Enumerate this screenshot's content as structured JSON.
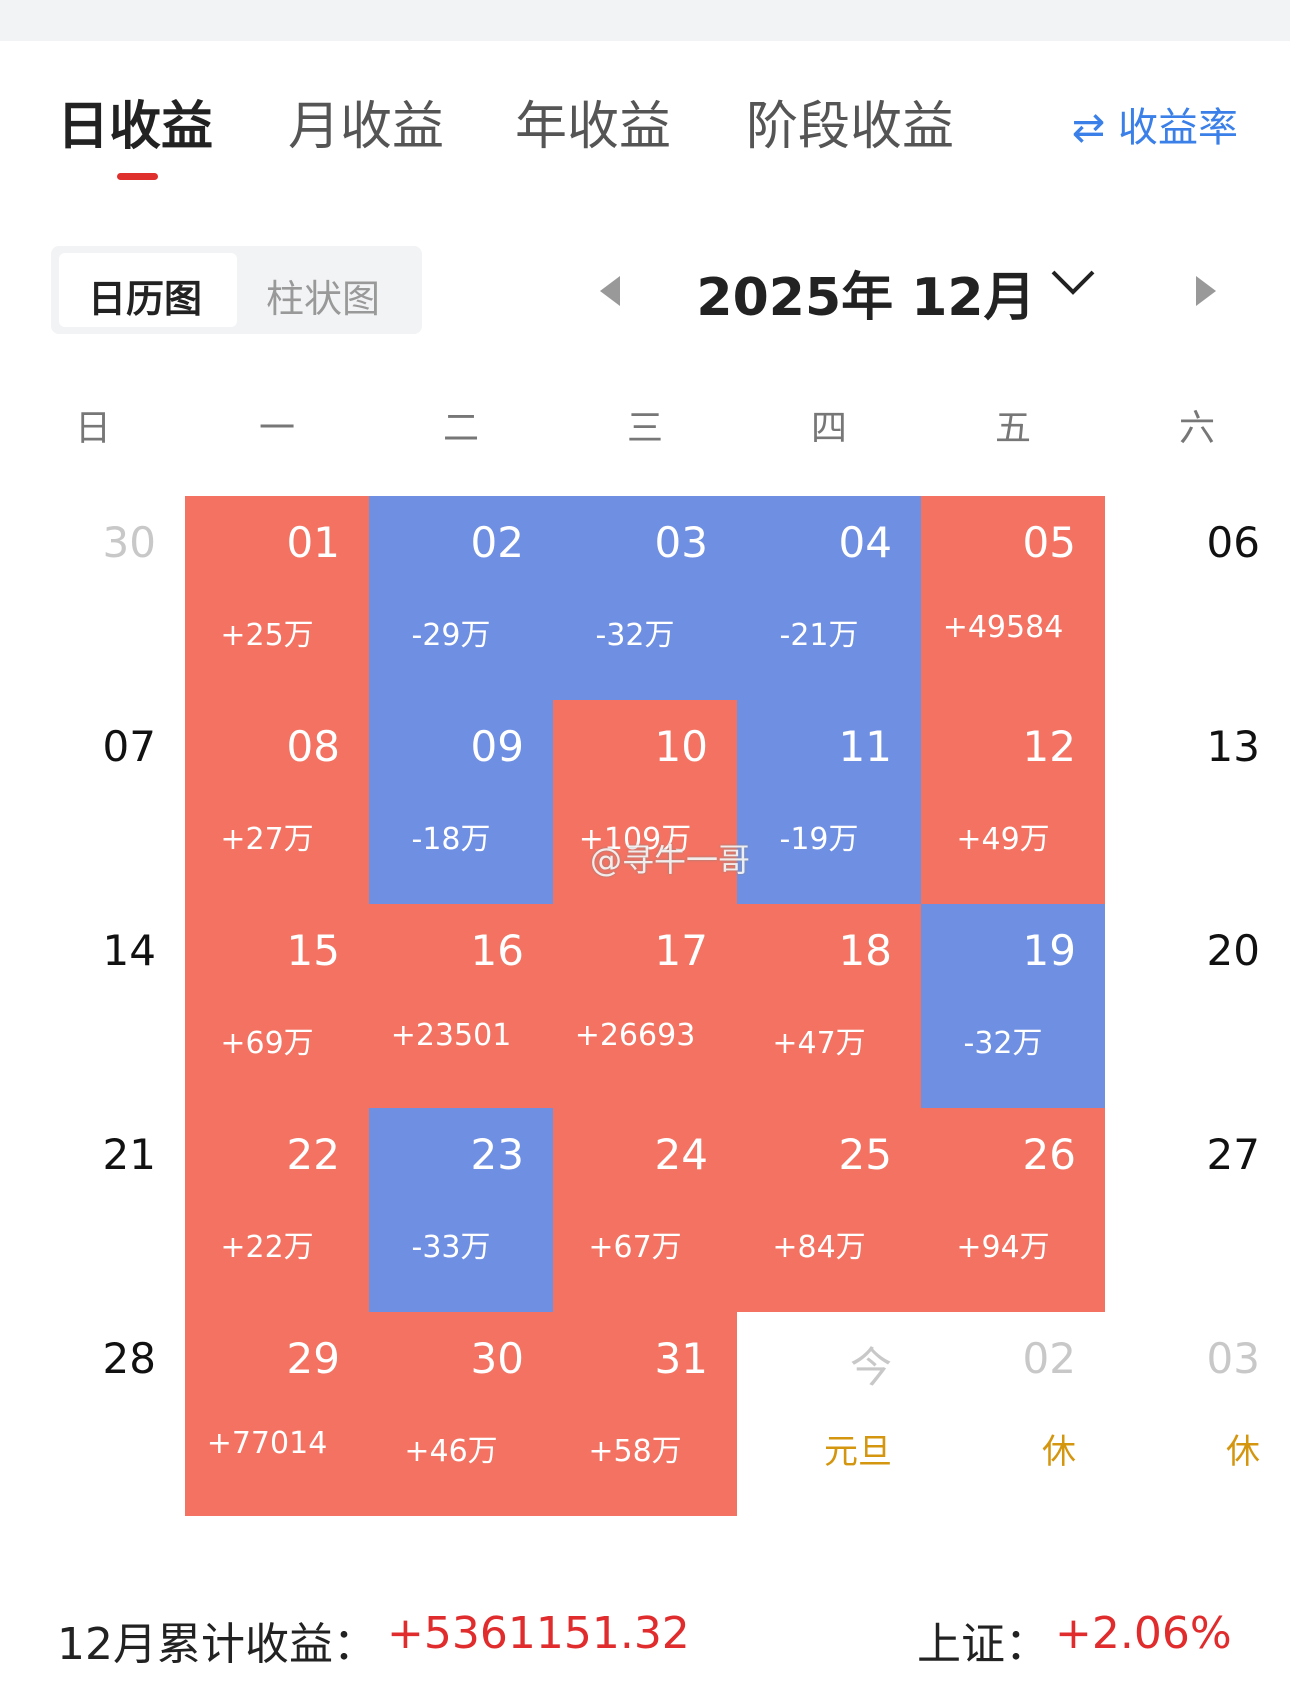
{
  "tabs": [
    "日收益",
    "月收益",
    "年收益",
    "阶段收益"
  ],
  "rate_toggle": "收益率",
  "view_toggle": [
    "日历图",
    "柱状图"
  ],
  "month": "2025年 12月",
  "weekdays": [
    "日",
    "一",
    "二",
    "三",
    "四",
    "五",
    "六"
  ],
  "weeks": [
    [
      {
        "day": "30",
        "day_color": "#c8c8c8"
      },
      {
        "day": "01",
        "amount": "+25万",
        "fill": "#f37262"
      },
      {
        "day": "02",
        "amount": "-29万",
        "fill": "#6f8fe3"
      },
      {
        "day": "03",
        "amount": "-32万",
        "fill": "#6f8fe3"
      },
      {
        "day": "04",
        "amount": "-21万",
        "fill": "#6f8fe3"
      },
      {
        "day": "05",
        "amount": "+49584",
        "fill": "#f37262"
      },
      {
        "day": "06"
      }
    ],
    [
      {
        "day": "07"
      },
      {
        "day": "08",
        "amount": "+27万",
        "fill": "#f37262"
      },
      {
        "day": "09",
        "amount": "-18万",
        "fill": "#6f8fe3"
      },
      {
        "day": "10",
        "amount": "+109万",
        "fill": "#f37262"
      },
      {
        "day": "11",
        "amount": "-19万",
        "fill": "#6f8fe3"
      },
      {
        "day": "12",
        "amount": "+49万",
        "fill": "#f37262"
      },
      {
        "day": "13"
      }
    ],
    [
      {
        "day": "14"
      },
      {
        "day": "15",
        "amount": "+69万",
        "fill": "#f37262"
      },
      {
        "day": "16",
        "amount": "+23501",
        "fill": "#f37262"
      },
      {
        "day": "17",
        "amount": "+26693",
        "fill": "#f37262"
      },
      {
        "day": "18",
        "amount": "+47万",
        "fill": "#f37262"
      },
      {
        "day": "19",
        "amount": "-32万",
        "fill": "#6f8fe3"
      },
      {
        "day": "20"
      }
    ],
    [
      {
        "day": "21"
      },
      {
        "day": "22",
        "amount": "+22万",
        "fill": "#f37262"
      },
      {
        "day": "23",
        "amount": "-33万",
        "fill": "#6f8fe3"
      },
      {
        "day": "24",
        "amount": "+67万",
        "fill": "#f37262"
      },
      {
        "day": "25",
        "amount": "+84万",
        "fill": "#f37262"
      },
      {
        "day": "26",
        "amount": "+94万",
        "fill": "#f37262"
      },
      {
        "day": "27"
      }
    ],
    [
      {
        "day": "28"
      },
      {
        "day": "29",
        "amount": "+77014",
        "fill": "#f37262"
      },
      {
        "day": "30",
        "amount": "+46万",
        "fill": "#f37262"
      },
      {
        "day": "31",
        "amount": "+58万",
        "fill": "#f37262"
      },
      {
        "day": "今",
        "day_color": "#c8c8c8",
        "note": "元旦"
      },
      {
        "day": "02",
        "day_color": "#c8c8c8",
        "note": "休"
      },
      {
        "day": "03",
        "day_color": "#c8c8c8",
        "note": "休"
      }
    ]
  ],
  "watermark": "@寻牛一哥",
  "summary": {
    "label": "12月累计收益：",
    "value": "+5361151.32",
    "index_label": "上证：",
    "index_value": "+2.06%"
  }
}
